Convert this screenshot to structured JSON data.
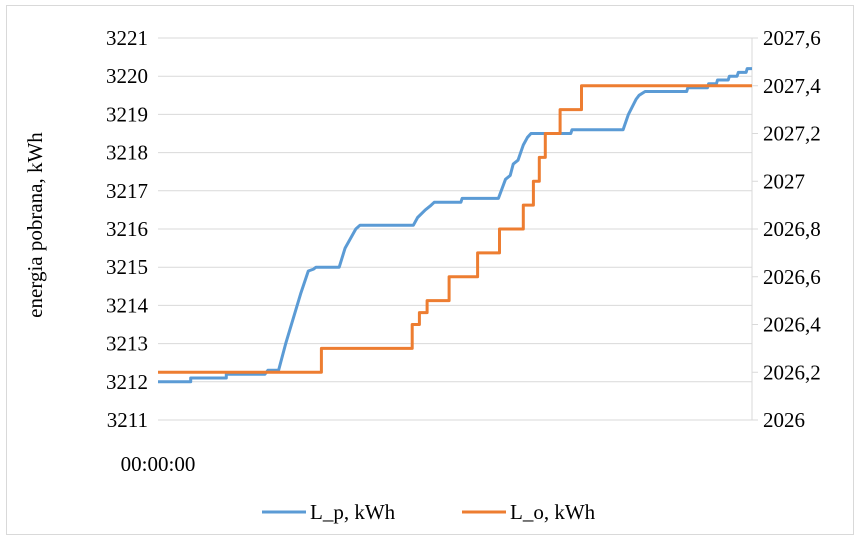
{
  "chart_data": {
    "type": "line",
    "title": "",
    "xlabel": "",
    "ylabel": "energia  pobrana, kWh",
    "y2label": "",
    "x_tick_labels": [
      "00:00:00"
    ],
    "ylim": [
      3211,
      3221
    ],
    "yticks": [
      3211,
      3212,
      3213,
      3214,
      3215,
      3216,
      3217,
      3218,
      3219,
      3220,
      3221
    ],
    "y2lim": [
      2026,
      2027.6
    ],
    "y2ticks": [
      "2026",
      "2026,2",
      "2026,4",
      "2026,6",
      "2026,8",
      "2027",
      "2027,2",
      "2027,4",
      "2027,6"
    ],
    "grid": true,
    "legend_position": "bottom",
    "x": [
      0,
      100
    ],
    "series": [
      {
        "name": "L_p, kWh",
        "axis": "left",
        "color": "#5b9bd5",
        "points": [
          [
            0,
            3212.0
          ],
          [
            5.5,
            3212.0
          ],
          [
            5.5,
            3212.1
          ],
          [
            11.5,
            3212.1
          ],
          [
            11.5,
            3212.2
          ],
          [
            18,
            3212.2
          ],
          [
            18.5,
            3212.3
          ],
          [
            20.3,
            3212.3
          ],
          [
            21.5,
            3213.0
          ],
          [
            24.0,
            3214.3
          ],
          [
            25.3,
            3214.9
          ],
          [
            26.2,
            3214.95
          ],
          [
            26.6,
            3215.0
          ],
          [
            30.5,
            3215.0
          ],
          [
            31.5,
            3215.5
          ],
          [
            33.3,
            3216.0
          ],
          [
            34.0,
            3216.1
          ],
          [
            43.0,
            3216.1
          ],
          [
            43.7,
            3216.3
          ],
          [
            45.0,
            3216.5
          ],
          [
            45.8,
            3216.6
          ],
          [
            46.5,
            3216.7
          ],
          [
            51.0,
            3216.7
          ],
          [
            51.2,
            3216.8
          ],
          [
            57.3,
            3216.8
          ],
          [
            58.5,
            3217.3
          ],
          [
            59.3,
            3217.4
          ],
          [
            59.8,
            3217.7
          ],
          [
            60.6,
            3217.8
          ],
          [
            61.5,
            3218.2
          ],
          [
            62.2,
            3218.4
          ],
          [
            62.8,
            3218.5
          ],
          [
            69.5,
            3218.5
          ],
          [
            69.7,
            3218.6
          ],
          [
            78.3,
            3218.6
          ],
          [
            79.2,
            3219.0
          ],
          [
            80.5,
            3219.4
          ],
          [
            81.0,
            3219.5
          ],
          [
            82.0,
            3219.6
          ],
          [
            89.0,
            3219.6
          ],
          [
            89.2,
            3219.7
          ],
          [
            92.5,
            3219.7
          ],
          [
            92.7,
            3219.8
          ],
          [
            94.0,
            3219.8
          ],
          [
            94.2,
            3219.9
          ],
          [
            96.0,
            3219.9
          ],
          [
            96.2,
            3220.0
          ],
          [
            97.5,
            3220.0
          ],
          [
            97.7,
            3220.1
          ],
          [
            99.0,
            3220.1
          ],
          [
            99.2,
            3220.2
          ],
          [
            100,
            3220.2
          ]
        ]
      },
      {
        "name": "L_o, kWh",
        "axis": "right",
        "color": "#ed7d31",
        "points": [
          [
            0,
            2026.2
          ],
          [
            27.5,
            2026.2
          ],
          [
            27.5,
            2026.3
          ],
          [
            42.8,
            2026.3
          ],
          [
            42.8,
            2026.4
          ],
          [
            44.0,
            2026.4
          ],
          [
            44.0,
            2026.45
          ],
          [
            45.3,
            2026.45
          ],
          [
            45.3,
            2026.5
          ],
          [
            49.0,
            2026.5
          ],
          [
            49.0,
            2026.6
          ],
          [
            53.8,
            2026.6
          ],
          [
            53.8,
            2026.7
          ],
          [
            57.5,
            2026.7
          ],
          [
            57.5,
            2026.8
          ],
          [
            61.5,
            2026.8
          ],
          [
            61.5,
            2026.9
          ],
          [
            63.2,
            2026.9
          ],
          [
            63.2,
            2027.0
          ],
          [
            64.2,
            2027.0
          ],
          [
            64.2,
            2027.1
          ],
          [
            65.2,
            2027.1
          ],
          [
            65.2,
            2027.2
          ],
          [
            67.7,
            2027.2
          ],
          [
            67.7,
            2027.3
          ],
          [
            71.3,
            2027.3
          ],
          [
            71.3,
            2027.4
          ],
          [
            100,
            2027.4
          ]
        ]
      }
    ]
  }
}
